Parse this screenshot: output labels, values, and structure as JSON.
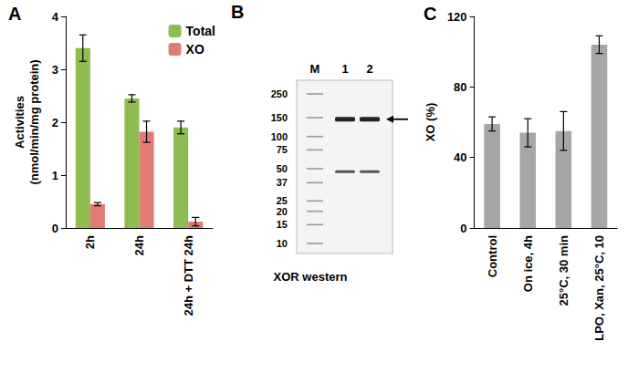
{
  "chart_data": [
    {
      "type": "bar",
      "title": "A",
      "ylabel": "Activities\n(nmol/min/mg protein)",
      "categories": [
        "2h",
        "24h",
        "24h + DTT 24h"
      ],
      "series": [
        {
          "name": "Total",
          "color": "#8fbc50",
          "values": [
            3.4,
            2.45,
            1.9
          ],
          "errors": [
            0.25,
            0.07,
            0.12
          ]
        },
        {
          "name": "XO",
          "color": "#e27b73",
          "values": [
            0.45,
            1.82,
            0.12
          ],
          "errors": [
            0.03,
            0.2,
            0.08
          ]
        }
      ],
      "ylim": [
        0,
        4
      ],
      "yticks": [
        0,
        1,
        2,
        3,
        4
      ],
      "grid": false,
      "legend": "upper right"
    },
    {
      "type": "bar",
      "title": "C",
      "ylabel": "XO (%)",
      "categories": [
        "Control",
        "On ice, 4h",
        "25°C, 30 min",
        "LPO, Xan, 25°C, 10"
      ],
      "values": [
        59,
        54,
        55,
        104
      ],
      "errors": [
        4,
        8,
        11,
        5
      ],
      "color": "#a6a6a6",
      "ylim": [
        0,
        120
      ],
      "yticks": [
        0,
        40,
        80,
        120
      ],
      "grid": false
    }
  ],
  "blot": {
    "panel": "B",
    "lanes": [
      "M",
      "1",
      "2"
    ],
    "marker_lane": "M",
    "markers": [
      250,
      150,
      100,
      75,
      50,
      37,
      25,
      20,
      15,
      10
    ],
    "sample_lanes": [
      "1",
      "2"
    ],
    "bands_kda": [
      145,
      47
    ],
    "arrow_kda": 145,
    "caption": "XOR western"
  }
}
